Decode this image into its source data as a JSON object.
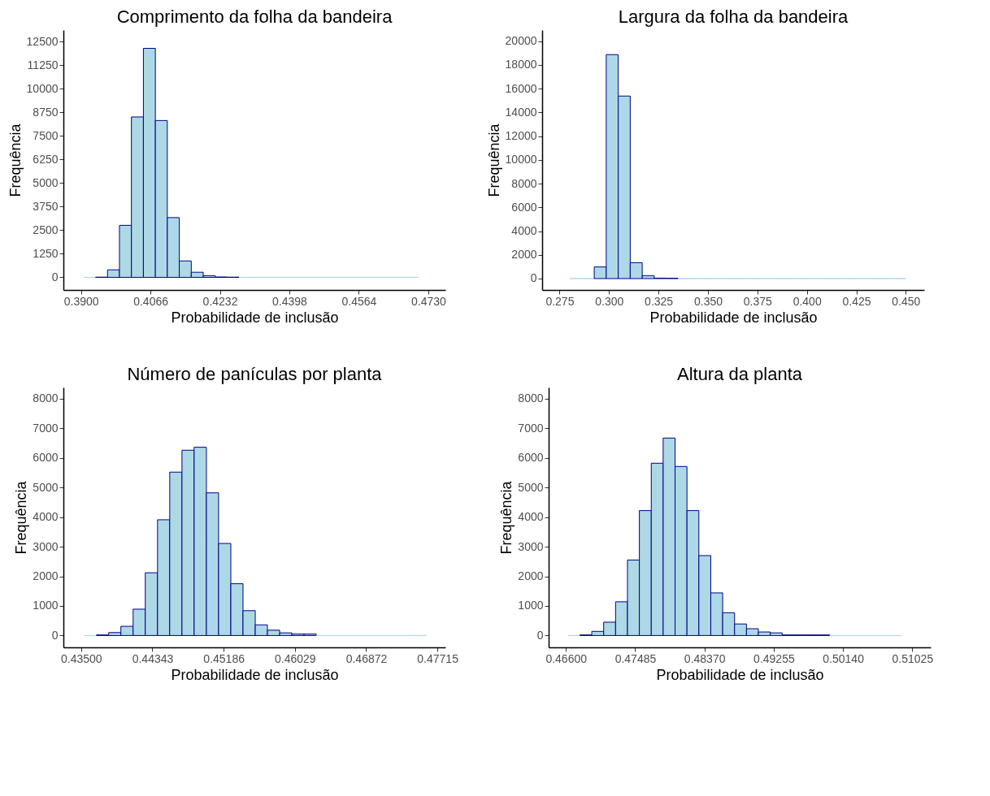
{
  "chart_data": [
    {
      "type": "histogram",
      "title": "Comprimento da folha da bandeira",
      "xlabel": "Probabilidade de inclusão",
      "ylabel": "Frequência",
      "color": "#add8e6",
      "bins": [
        0.39062,
        0.39348,
        0.39634,
        0.3992,
        0.40206,
        0.40492,
        0.40778,
        0.41064,
        0.4135,
        0.41636,
        0.41922,
        0.42208,
        0.42494,
        0.4278,
        0.43066,
        0.43352,
        0.43638,
        0.43924,
        0.4421,
        0.44496,
        0.44782,
        0.45068,
        0.45354,
        0.4564,
        0.45926,
        0.46212,
        0.46498,
        0.46784,
        0.4707
      ],
      "values": [
        0,
        10,
        400,
        2760,
        8510,
        12150,
        8320,
        3170,
        870,
        270,
        90,
        20,
        10,
        0,
        0,
        0,
        0,
        0,
        0,
        0,
        0,
        0,
        0,
        0,
        0,
        0,
        0,
        0
      ],
      "xlim": [
        0.3858,
        0.4771
      ],
      "ylim": [
        -670,
        13120
      ],
      "xticks": [
        {
          "value": 0.39,
          "label": "0.3900"
        },
        {
          "value": 0.4066,
          "label": "0.4066"
        },
        {
          "value": 0.4232,
          "label": "0.4232"
        },
        {
          "value": 0.4398,
          "label": "0.4398"
        },
        {
          "value": 0.4564,
          "label": "0.4564"
        },
        {
          "value": 0.473,
          "label": "0.4730"
        }
      ],
      "yticks": [
        0,
        1250,
        2500,
        3750,
        5000,
        6250,
        7500,
        8750,
        10000,
        11250,
        12500
      ]
    },
    {
      "type": "histogram",
      "title": "Largura da folha da bandeira",
      "xlabel": "Probabilidade de inclusão",
      "ylabel": "Frequência",
      "color": "#add8e6",
      "bins": [
        0.28042,
        0.28648,
        0.29254,
        0.2986,
        0.30466,
        0.31072,
        0.31678,
        0.32284,
        0.3289,
        0.33496,
        0.34102,
        0.34708,
        0.35314,
        0.3592,
        0.36526,
        0.37132,
        0.37738,
        0.38344,
        0.3895,
        0.39556,
        0.40162,
        0.40768,
        0.41374,
        0.4198,
        0.42586,
        0.43192,
        0.43798,
        0.44404,
        0.4501
      ],
      "values": [
        0,
        0,
        980,
        18870,
        15380,
        1340,
        250,
        40,
        30,
        0,
        0,
        0,
        0,
        0,
        0,
        0,
        0,
        0,
        0,
        0,
        0,
        0,
        0,
        0,
        0,
        0,
        0,
        0
      ],
      "xlim": [
        0.2662,
        0.4593
      ],
      "ylim": [
        -960,
        20940
      ],
      "xticks": [
        {
          "value": 0.275,
          "label": "0.275"
        },
        {
          "value": 0.3,
          "label": "0.300"
        },
        {
          "value": 0.325,
          "label": "0.325"
        },
        {
          "value": 0.35,
          "label": "0.350"
        },
        {
          "value": 0.375,
          "label": "0.375"
        },
        {
          "value": 0.4,
          "label": "0.400"
        },
        {
          "value": 0.425,
          "label": "0.425"
        },
        {
          "value": 0.45,
          "label": "0.450"
        }
      ],
      "yticks": [
        0,
        2000,
        4000,
        6000,
        8000,
        10000,
        12000,
        14000,
        16000,
        18000,
        20000
      ]
    },
    {
      "type": "histogram",
      "title": "Número de panículas por planta",
      "xlabel": "Probabilidade de inclusão",
      "ylabel": "Frequência",
      "color": "#add8e6",
      "bins": [
        0.43537,
        0.43681,
        0.43826,
        0.4397,
        0.44115,
        0.44259,
        0.44404,
        0.44548,
        0.44693,
        0.44837,
        0.44982,
        0.45126,
        0.45271,
        0.45415,
        0.4556,
        0.45704,
        0.45849,
        0.45993,
        0.46138,
        0.46282,
        0.46427,
        0.46571,
        0.46716,
        0.4686,
        0.47005,
        0.47149,
        0.47294,
        0.47438,
        0.47583
      ],
      "values": [
        0,
        20,
        100,
        310,
        890,
        2120,
        3910,
        5520,
        6260,
        6360,
        4820,
        3110,
        1750,
        840,
        360,
        180,
        90,
        50,
        50,
        0,
        0,
        0,
        0,
        0,
        0,
        0,
        0,
        0
      ],
      "xlim": [
        0.4329,
        0.4781
      ],
      "ylim": [
        -400,
        8380
      ],
      "xticks": [
        {
          "value": 0.435,
          "label": "0.43500"
        },
        {
          "value": 0.44343,
          "label": "0.44343"
        },
        {
          "value": 0.45186,
          "label": "0.45186"
        },
        {
          "value": 0.46029,
          "label": "0.46029"
        },
        {
          "value": 0.46872,
          "label": "0.46872"
        },
        {
          "value": 0.47715,
          "label": "0.47715"
        }
      ],
      "yticks": [
        0,
        1000,
        2000,
        3000,
        4000,
        5000,
        6000,
        7000,
        8000
      ]
    },
    {
      "type": "histogram",
      "title": "Altura da planta",
      "xlabel": "Probabilidade de inclusão",
      "ylabel": "Frequência",
      "color": "#add8e6",
      "bins": [
        0.46627,
        0.46779,
        0.46931,
        0.47083,
        0.47235,
        0.47387,
        0.47539,
        0.47691,
        0.47843,
        0.47995,
        0.48147,
        0.48299,
        0.48451,
        0.48603,
        0.48755,
        0.48907,
        0.49059,
        0.49211,
        0.49363,
        0.49515,
        0.49667,
        0.49819,
        0.49971,
        0.50123,
        0.50275,
        0.50427,
        0.50579,
        0.50731,
        0.50883
      ],
      "values": [
        0,
        20,
        140,
        450,
        1140,
        2550,
        4220,
        5820,
        6670,
        5710,
        4220,
        2700,
        1440,
        770,
        390,
        230,
        120,
        90,
        20,
        20,
        20,
        20,
        0,
        0,
        0,
        0,
        0,
        0
      ],
      "xlim": [
        0.4638,
        0.5126
      ],
      "ylim": [
        -400,
        8380
      ],
      "xticks": [
        {
          "value": 0.466,
          "label": "0.46600"
        },
        {
          "value": 0.47485,
          "label": "0.47485"
        },
        {
          "value": 0.4837,
          "label": "0.48370"
        },
        {
          "value": 0.49255,
          "label": "0.49255"
        },
        {
          "value": 0.5014,
          "label": "0.50140"
        },
        {
          "value": 0.51025,
          "label": "0.51025"
        }
      ],
      "yticks": [
        0,
        1000,
        2000,
        3000,
        4000,
        5000,
        6000,
        7000,
        8000
      ]
    }
  ]
}
